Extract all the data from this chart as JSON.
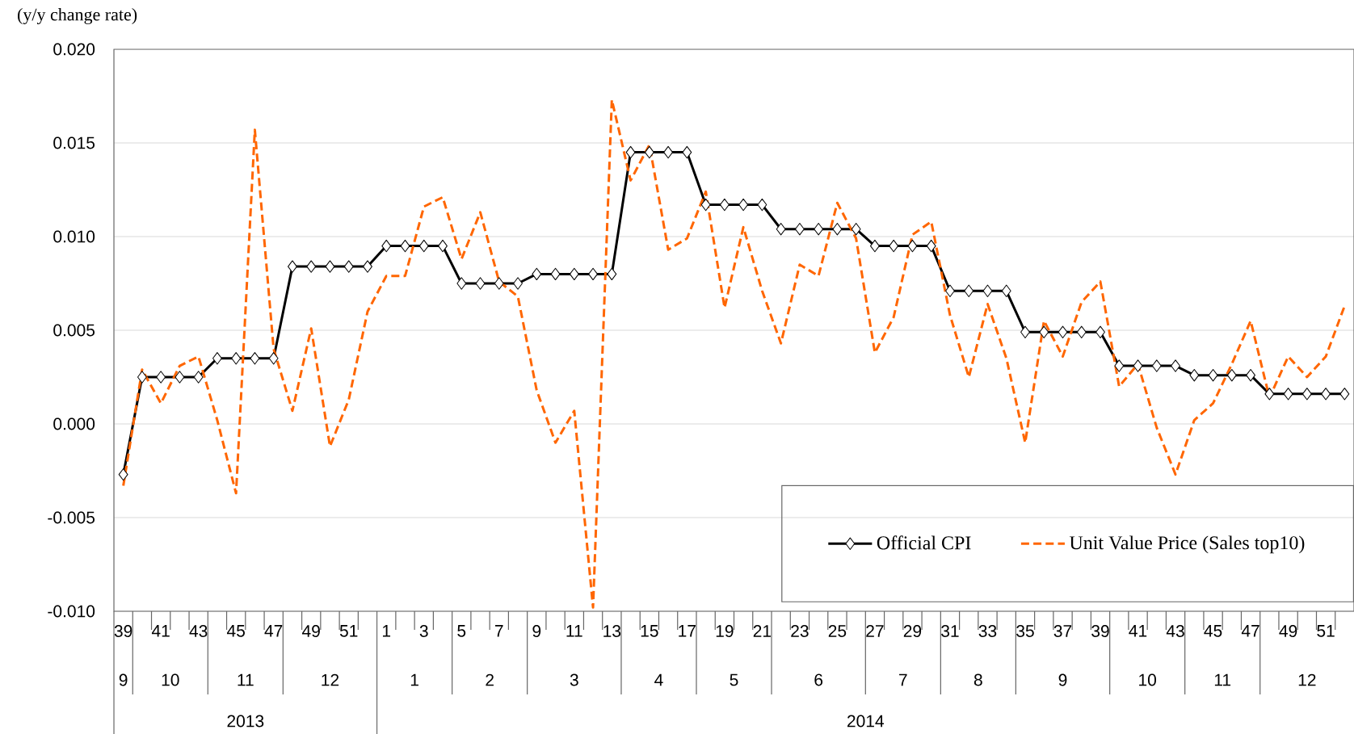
{
  "chart_data": {
    "type": "line",
    "ylabel": "(y/y change rate)",
    "categories": [
      "39",
      null,
      "41",
      null,
      "43",
      null,
      "45",
      null,
      "47",
      null,
      "49",
      null,
      "51",
      null,
      "1",
      null,
      "3",
      null,
      "5",
      null,
      "7",
      null,
      "9",
      null,
      "11",
      null,
      "13",
      null,
      "15",
      null,
      "17",
      null,
      "19",
      null,
      "21",
      null,
      "23",
      null,
      "25",
      null,
      "27",
      null,
      "29",
      null,
      "31",
      null,
      "33",
      null,
      "35",
      null,
      "37",
      null,
      "39",
      null,
      "41",
      null,
      "43",
      null,
      "45",
      null,
      "47",
      null,
      "49",
      null,
      "51",
      null
    ],
    "series": [
      {
        "name": "Official CPI",
        "color": "#000000",
        "marker": "diamond",
        "line_style": "solid",
        "values": [
          -0.0027,
          0.0025,
          0.0025,
          0.0025,
          0.0025,
          0.0035,
          0.0035,
          0.0035,
          0.0035,
          0.0084,
          0.0084,
          0.0084,
          0.0084,
          0.0084,
          0.0095,
          0.0095,
          0.0095,
          0.0095,
          0.0075,
          0.0075,
          0.0075,
          0.0075,
          0.008,
          0.008,
          0.008,
          0.008,
          0.008,
          0.0145,
          0.0145,
          0.0145,
          0.0145,
          0.0117,
          0.0117,
          0.0117,
          0.0117,
          0.0104,
          0.0104,
          0.0104,
          0.0104,
          0.0104,
          0.0095,
          0.0095,
          0.0095,
          0.0095,
          0.0071,
          0.0071,
          0.0071,
          0.0071,
          0.0049,
          0.0049,
          0.0049,
          0.0049,
          0.0049,
          0.0031,
          0.0031,
          0.0031,
          0.0031,
          0.0026,
          0.0026,
          0.0026,
          0.0026,
          0.0016,
          0.0016,
          0.0016,
          0.0016,
          0.0016
        ]
      },
      {
        "name": "Unit Value Price (Sales top10)",
        "color": "#ff6600",
        "marker": "none",
        "line_style": "dashed",
        "values": [
          -0.0033,
          0.0029,
          0.0011,
          0.0031,
          0.0036,
          0.0002,
          -0.0037,
          0.0157,
          0.004,
          0.0007,
          0.0051,
          -0.0012,
          0.0013,
          0.006,
          0.0079,
          0.0079,
          0.0116,
          0.0121,
          0.0088,
          0.0113,
          0.0076,
          0.0068,
          0.0018,
          -0.001,
          0.0007,
          -0.0098,
          0.0173,
          0.013,
          0.0149,
          0.0093,
          0.0099,
          0.0124,
          0.0062,
          0.0105,
          0.0071,
          0.0043,
          0.0085,
          0.0079,
          0.0118,
          0.0099,
          0.0038,
          0.0057,
          0.0101,
          0.0108,
          0.0058,
          0.0025,
          0.0064,
          0.0035,
          -0.001,
          0.0055,
          0.0036,
          0.0065,
          0.0076,
          0.002,
          0.0032,
          -0.0002,
          -0.0027,
          0.0002,
          0.0011,
          0.0032,
          0.0055,
          0.0014,
          0.0036,
          0.0025,
          0.0036,
          0.0063
        ]
      }
    ],
    "ylim": [
      -0.01,
      0.02
    ],
    "yticks": [
      {
        "value": -0.01,
        "label": "-0.010"
      },
      {
        "value": -0.005,
        "label": "-0.005"
      },
      {
        "value": 0,
        "label": "0.000"
      },
      {
        "value": 0.005,
        "label": "0.005"
      },
      {
        "value": 0.01,
        "label": "0.010"
      },
      {
        "value": 0.015,
        "label": "0.015"
      },
      {
        "value": 0.02,
        "label": "0.020"
      }
    ],
    "grid": "y",
    "legend": "bottom right",
    "annotations": [
      "9",
      "10",
      "11",
      "12",
      "1",
      "2",
      "3",
      "4",
      "5",
      "6",
      "7",
      "8",
      "9",
      "10",
      "11",
      "12",
      "2013",
      "2014"
    ]
  }
}
